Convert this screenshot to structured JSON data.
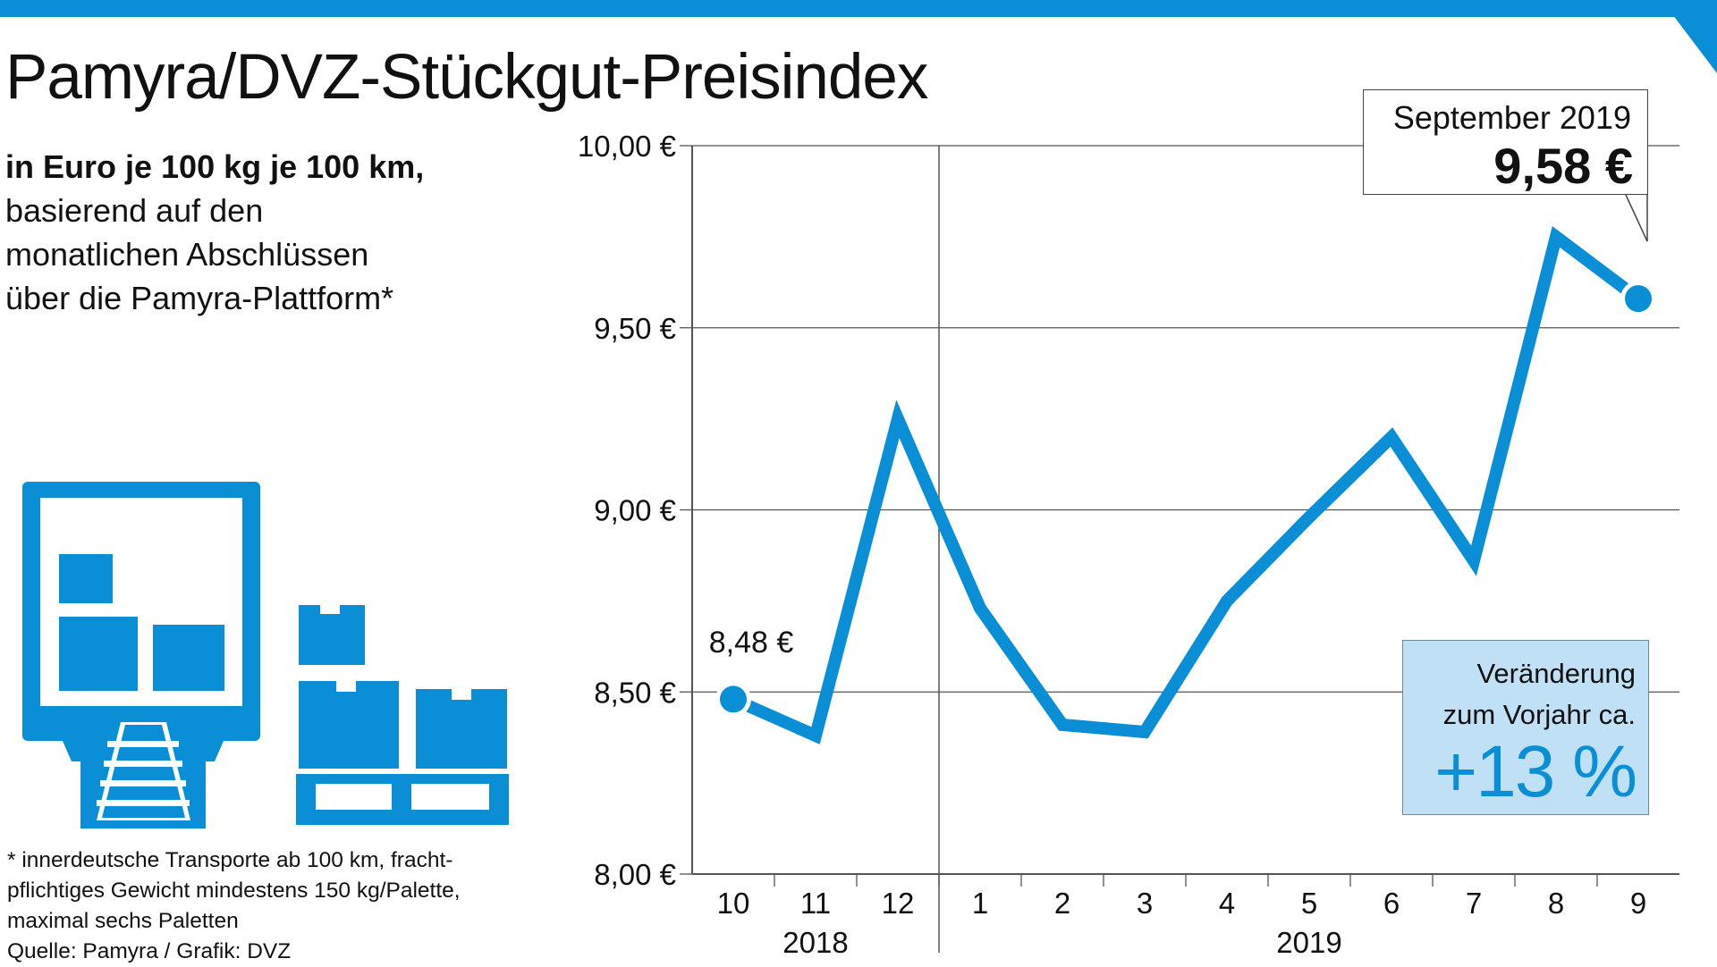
{
  "header": {
    "title": "Pamyra/DVZ-Stückgut-Preisindex",
    "subtitle_bold": "in Euro je 100 kg je 100 km,",
    "subtitle_lines": [
      "basierend auf den",
      "monatlichen Abschlüssen",
      "über die Pamyra-Plattform*"
    ]
  },
  "colors": {
    "accent": "#0a8fd6",
    "highlight_box": "#bfe0f5",
    "icon": "#0a8fd6"
  },
  "icon": "truck-and-pallet-icon",
  "callout": {
    "month": "September 2019",
    "value": "9,58 €"
  },
  "start_label": "8,48 €",
  "change": {
    "label_line1": "Veränderung",
    "label_line2": "zum Vorjahr ca.",
    "value": "+13 %"
  },
  "footnote": {
    "lines": [
      "* innerdeutsche Transporte ab 100 km, fracht-",
      "pflichtiges Gewicht mindestens 150 kg/Palette,",
      "maximal sechs Paletten"
    ],
    "source": "Quelle: Pamyra / Grafik: DVZ"
  },
  "chart_data": {
    "type": "line",
    "x": [
      "10",
      "11",
      "12",
      "1",
      "2",
      "3",
      "4",
      "5",
      "6",
      "7",
      "8",
      "9"
    ],
    "year_labels": [
      "2018",
      "2019"
    ],
    "series": [
      {
        "values": [
          8.48,
          8.38,
          9.25,
          8.73,
          8.41,
          8.39,
          8.75,
          8.98,
          9.2,
          8.86,
          9.75,
          9.58
        ]
      }
    ],
    "y_ticks": [
      "8,00 €",
      "8,50 €",
      "9,00 €",
      "9,50 €",
      "10,00 €"
    ],
    "y_tick_values": [
      8.0,
      8.5,
      9.0,
      9.5,
      10.0
    ],
    "ylim": [
      8.0,
      10.0
    ],
    "grid": true
  }
}
